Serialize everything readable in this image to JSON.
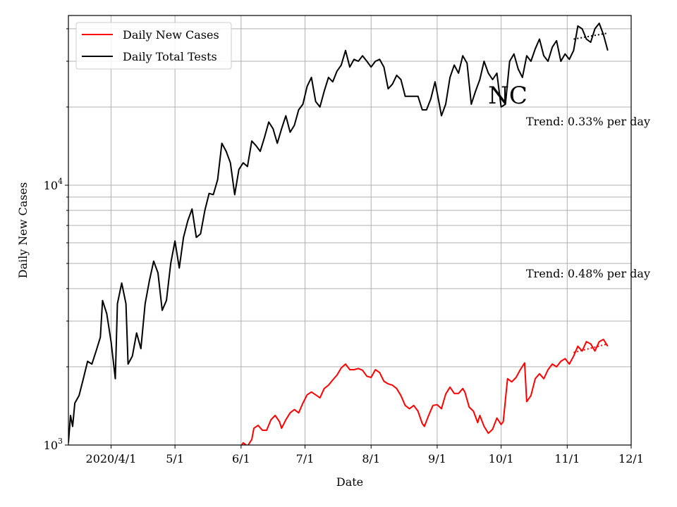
{
  "chart_data": {
    "type": "line",
    "title": "",
    "state_label": "NC",
    "xlabel": "Date",
    "ylabel": "Daily New Cases",
    "y_scale": "log",
    "ylim": [
      1000,
      45000
    ],
    "xlim": [
      "2020-03-12",
      "2020-12-01"
    ],
    "grid": true,
    "legend_position": "top-left",
    "x_ticks": [
      {
        "date": "2020-04-01",
        "label": "2020/4/1"
      },
      {
        "date": "2020-05-01",
        "label": "5/1"
      },
      {
        "date": "2020-06-01",
        "label": "6/1"
      },
      {
        "date": "2020-07-01",
        "label": "7/1"
      },
      {
        "date": "2020-08-01",
        "label": "8/1"
      },
      {
        "date": "2020-09-01",
        "label": "9/1"
      },
      {
        "date": "2020-10-01",
        "label": "10/1"
      },
      {
        "date": "2020-11-01",
        "label": "11/1"
      },
      {
        "date": "2020-12-01",
        "label": "12/1"
      }
    ],
    "y_ticks": [
      {
        "value": 1000,
        "base": "10",
        "exp": "3"
      },
      {
        "value": 10000,
        "base": "10",
        "exp": "4"
      }
    ],
    "annotations": [
      {
        "text": "Trend: 0.33% per day",
        "series": "Daily Total Tests"
      },
      {
        "text": "Trend: 0.48% per day",
        "series": "Daily New Cases"
      }
    ],
    "series": [
      {
        "name": "Daily New Cases",
        "color": "#ff0000",
        "points": [
          [
            "2020-06-01",
            990
          ],
          [
            "2020-06-02",
            1020
          ],
          [
            "2020-06-04",
            990
          ],
          [
            "2020-06-06",
            1050
          ],
          [
            "2020-06-07",
            1160
          ],
          [
            "2020-06-09",
            1190
          ],
          [
            "2020-06-11",
            1140
          ],
          [
            "2020-06-13",
            1140
          ],
          [
            "2020-06-15",
            1250
          ],
          [
            "2020-06-17",
            1300
          ],
          [
            "2020-06-19",
            1230
          ],
          [
            "2020-06-20",
            1160
          ],
          [
            "2020-06-22",
            1250
          ],
          [
            "2020-06-24",
            1330
          ],
          [
            "2020-06-26",
            1370
          ],
          [
            "2020-06-28",
            1330
          ],
          [
            "2020-06-30",
            1450
          ],
          [
            "2020-07-02",
            1560
          ],
          [
            "2020-07-04",
            1600
          ],
          [
            "2020-07-06",
            1560
          ],
          [
            "2020-07-08",
            1520
          ],
          [
            "2020-07-10",
            1650
          ],
          [
            "2020-07-12",
            1700
          ],
          [
            "2020-07-14",
            1780
          ],
          [
            "2020-07-16",
            1860
          ],
          [
            "2020-07-18",
            1980
          ],
          [
            "2020-07-20",
            2050
          ],
          [
            "2020-07-22",
            1950
          ],
          [
            "2020-07-24",
            1950
          ],
          [
            "2020-07-26",
            1970
          ],
          [
            "2020-07-28",
            1940
          ],
          [
            "2020-07-30",
            1840
          ],
          [
            "2020-08-01",
            1820
          ],
          [
            "2020-08-03",
            1950
          ],
          [
            "2020-08-05",
            1900
          ],
          [
            "2020-08-07",
            1760
          ],
          [
            "2020-08-09",
            1720
          ],
          [
            "2020-08-11",
            1700
          ],
          [
            "2020-08-13",
            1650
          ],
          [
            "2020-08-15",
            1550
          ],
          [
            "2020-08-17",
            1420
          ],
          [
            "2020-08-19",
            1380
          ],
          [
            "2020-08-21",
            1420
          ],
          [
            "2020-08-23",
            1350
          ],
          [
            "2020-08-25",
            1210
          ],
          [
            "2020-08-26",
            1180
          ],
          [
            "2020-08-28",
            1300
          ],
          [
            "2020-08-30",
            1420
          ],
          [
            "2020-09-01",
            1430
          ],
          [
            "2020-09-03",
            1380
          ],
          [
            "2020-09-05",
            1570
          ],
          [
            "2020-09-07",
            1670
          ],
          [
            "2020-09-09",
            1580
          ],
          [
            "2020-09-11",
            1580
          ],
          [
            "2020-09-13",
            1650
          ],
          [
            "2020-09-14",
            1600
          ],
          [
            "2020-09-16",
            1400
          ],
          [
            "2020-09-18",
            1350
          ],
          [
            "2020-09-20",
            1220
          ],
          [
            "2020-09-21",
            1300
          ],
          [
            "2020-09-23",
            1180
          ],
          [
            "2020-09-25",
            1110
          ],
          [
            "2020-09-27",
            1150
          ],
          [
            "2020-09-29",
            1270
          ],
          [
            "2020-10-01",
            1200
          ],
          [
            "2020-10-02",
            1230
          ],
          [
            "2020-10-04",
            1800
          ],
          [
            "2020-10-06",
            1750
          ],
          [
            "2020-10-08",
            1820
          ],
          [
            "2020-10-10",
            1950
          ],
          [
            "2020-10-12",
            2070
          ],
          [
            "2020-10-13",
            1470
          ],
          [
            "2020-10-15",
            1550
          ],
          [
            "2020-10-17",
            1800
          ],
          [
            "2020-10-19",
            1880
          ],
          [
            "2020-10-21",
            1800
          ],
          [
            "2020-10-23",
            1950
          ],
          [
            "2020-10-25",
            2050
          ],
          [
            "2020-10-27",
            2000
          ],
          [
            "2020-10-29",
            2100
          ],
          [
            "2020-10-31",
            2150
          ],
          [
            "2020-11-02",
            2050
          ],
          [
            "2020-11-04",
            2200
          ],
          [
            "2020-11-06",
            2400
          ],
          [
            "2020-11-08",
            2300
          ],
          [
            "2020-11-10",
            2500
          ],
          [
            "2020-11-12",
            2450
          ],
          [
            "2020-11-14",
            2300
          ],
          [
            "2020-11-16",
            2500
          ],
          [
            "2020-11-18",
            2550
          ],
          [
            "2020-11-20",
            2400
          ]
        ],
        "trend": {
          "from": "2020-11-04",
          "to": "2020-11-20",
          "start": 2270,
          "end": 2450
        }
      },
      {
        "name": "Daily Total Tests",
        "color": "#000000",
        "points": [
          [
            "2020-03-12",
            1020
          ],
          [
            "2020-03-13",
            1300
          ],
          [
            "2020-03-14",
            1180
          ],
          [
            "2020-03-15",
            1450
          ],
          [
            "2020-03-17",
            1550
          ],
          [
            "2020-03-19",
            1800
          ],
          [
            "2020-03-21",
            2100
          ],
          [
            "2020-03-23",
            2050
          ],
          [
            "2020-03-25",
            2300
          ],
          [
            "2020-03-27",
            2600
          ],
          [
            "2020-03-28",
            3600
          ],
          [
            "2020-03-30",
            3200
          ],
          [
            "2020-04-01",
            2500
          ],
          [
            "2020-04-03",
            1800
          ],
          [
            "2020-04-04",
            3500
          ],
          [
            "2020-04-06",
            4200
          ],
          [
            "2020-04-08",
            3500
          ],
          [
            "2020-04-09",
            2050
          ],
          [
            "2020-04-11",
            2200
          ],
          [
            "2020-04-13",
            2700
          ],
          [
            "2020-04-15",
            2350
          ],
          [
            "2020-04-17",
            3500
          ],
          [
            "2020-04-19",
            4300
          ],
          [
            "2020-04-21",
            5100
          ],
          [
            "2020-04-23",
            4600
          ],
          [
            "2020-04-25",
            3300
          ],
          [
            "2020-04-27",
            3600
          ],
          [
            "2020-04-29",
            5000
          ],
          [
            "2020-05-01",
            6100
          ],
          [
            "2020-05-03",
            4800
          ],
          [
            "2020-05-05",
            6300
          ],
          [
            "2020-05-07",
            7300
          ],
          [
            "2020-05-09",
            8100
          ],
          [
            "2020-05-11",
            6300
          ],
          [
            "2020-05-13",
            6500
          ],
          [
            "2020-05-15",
            8000
          ],
          [
            "2020-05-17",
            9300
          ],
          [
            "2020-05-19",
            9200
          ],
          [
            "2020-05-21",
            10500
          ],
          [
            "2020-05-23",
            14500
          ],
          [
            "2020-05-25",
            13500
          ],
          [
            "2020-05-27",
            12200
          ],
          [
            "2020-05-29",
            9200
          ],
          [
            "2020-05-31",
            11500
          ],
          [
            "2020-06-02",
            12200
          ],
          [
            "2020-06-04",
            11800
          ],
          [
            "2020-06-06",
            14800
          ],
          [
            "2020-06-08",
            14200
          ],
          [
            "2020-06-10",
            13500
          ],
          [
            "2020-06-12",
            15300
          ],
          [
            "2020-06-14",
            17500
          ],
          [
            "2020-06-16",
            16500
          ],
          [
            "2020-06-18",
            14500
          ],
          [
            "2020-06-20",
            16500
          ],
          [
            "2020-06-22",
            18500
          ],
          [
            "2020-06-24",
            16000
          ],
          [
            "2020-06-26",
            17000
          ],
          [
            "2020-06-28",
            19500
          ],
          [
            "2020-06-30",
            20500
          ],
          [
            "2020-07-02",
            24000
          ],
          [
            "2020-07-04",
            26000
          ],
          [
            "2020-07-06",
            21000
          ],
          [
            "2020-07-08",
            20000
          ],
          [
            "2020-07-10",
            23000
          ],
          [
            "2020-07-12",
            26000
          ],
          [
            "2020-07-14",
            25000
          ],
          [
            "2020-07-16",
            27500
          ],
          [
            "2020-07-18",
            29000
          ],
          [
            "2020-07-20",
            33000
          ],
          [
            "2020-07-22",
            28500
          ],
          [
            "2020-07-24",
            30500
          ],
          [
            "2020-07-26",
            30000
          ],
          [
            "2020-07-28",
            31500
          ],
          [
            "2020-07-30",
            30000
          ],
          [
            "2020-08-01",
            28500
          ],
          [
            "2020-08-03",
            30000
          ],
          [
            "2020-08-05",
            30500
          ],
          [
            "2020-08-07",
            28500
          ],
          [
            "2020-08-09",
            23500
          ],
          [
            "2020-08-11",
            24500
          ],
          [
            "2020-08-13",
            26500
          ],
          [
            "2020-08-15",
            25500
          ],
          [
            "2020-08-17",
            22000
          ],
          [
            "2020-08-19",
            22000
          ],
          [
            "2020-08-21",
            22000
          ],
          [
            "2020-08-23",
            22000
          ],
          [
            "2020-08-25",
            19500
          ],
          [
            "2020-08-27",
            19500
          ],
          [
            "2020-08-29",
            21500
          ],
          [
            "2020-08-31",
            25000
          ],
          [
            "2020-09-02",
            20500
          ],
          [
            "2020-09-03",
            18500
          ],
          [
            "2020-09-05",
            20500
          ],
          [
            "2020-09-07",
            26000
          ],
          [
            "2020-09-09",
            29000
          ],
          [
            "2020-09-11",
            27000
          ],
          [
            "2020-09-13",
            31500
          ],
          [
            "2020-09-15",
            29500
          ],
          [
            "2020-09-17",
            20500
          ],
          [
            "2020-09-19",
            23000
          ],
          [
            "2020-09-21",
            25500
          ],
          [
            "2020-09-23",
            30000
          ],
          [
            "2020-09-25",
            27000
          ],
          [
            "2020-09-27",
            25500
          ],
          [
            "2020-09-29",
            27000
          ],
          [
            "2020-10-01",
            20000
          ],
          [
            "2020-10-03",
            20500
          ],
          [
            "2020-10-05",
            30000
          ],
          [
            "2020-10-07",
            32000
          ],
          [
            "2020-10-09",
            28000
          ],
          [
            "2020-10-11",
            26000
          ],
          [
            "2020-10-13",
            31500
          ],
          [
            "2020-10-15",
            30000
          ],
          [
            "2020-10-17",
            33500
          ],
          [
            "2020-10-19",
            36500
          ],
          [
            "2020-10-21",
            31500
          ],
          [
            "2020-10-23",
            30000
          ],
          [
            "2020-10-25",
            34000
          ],
          [
            "2020-10-27",
            36000
          ],
          [
            "2020-10-29",
            30000
          ],
          [
            "2020-10-31",
            32000
          ],
          [
            "2020-11-02",
            30500
          ],
          [
            "2020-11-04",
            33000
          ],
          [
            "2020-11-06",
            41000
          ],
          [
            "2020-11-08",
            40000
          ],
          [
            "2020-11-10",
            36500
          ],
          [
            "2020-11-12",
            35500
          ],
          [
            "2020-11-14",
            40000
          ],
          [
            "2020-11-16",
            42000
          ],
          [
            "2020-11-18",
            38000
          ],
          [
            "2020-11-20",
            33000
          ]
        ],
        "trend": {
          "from": "2020-11-04",
          "to": "2020-11-20",
          "start": 36500,
          "end": 38500
        }
      }
    ]
  }
}
